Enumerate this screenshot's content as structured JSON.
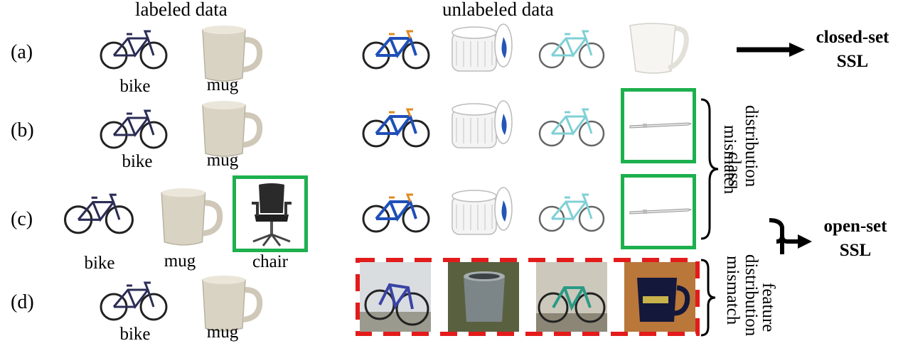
{
  "headers": {
    "labeled": "labeled data",
    "unlabeled": "unlabeled data"
  },
  "rows": [
    {
      "label": "(a)",
      "captions": [
        "bike",
        "mug"
      ]
    },
    {
      "label": "(b)",
      "captions": [
        "bike",
        "mug"
      ]
    },
    {
      "label": "(c)",
      "captions": [
        "bike",
        "mug",
        "chair"
      ]
    },
    {
      "label": "(d)",
      "captions": [
        "bike",
        "mug"
      ]
    }
  ],
  "results": {
    "closed_line1": "closed-set",
    "closed_line2": "SSL",
    "open_line1": "open-set",
    "open_line2": "SSL"
  },
  "brace_labels": {
    "class_col1": "class",
    "class_col2": "distribution",
    "class_col3": "mismatch",
    "feature_col1": "feature",
    "feature_col2": "distribution",
    "feature_col3": "mismatch"
  },
  "colors": {
    "green_box": "#1db04e",
    "red_dashed": "#e41b1b"
  }
}
